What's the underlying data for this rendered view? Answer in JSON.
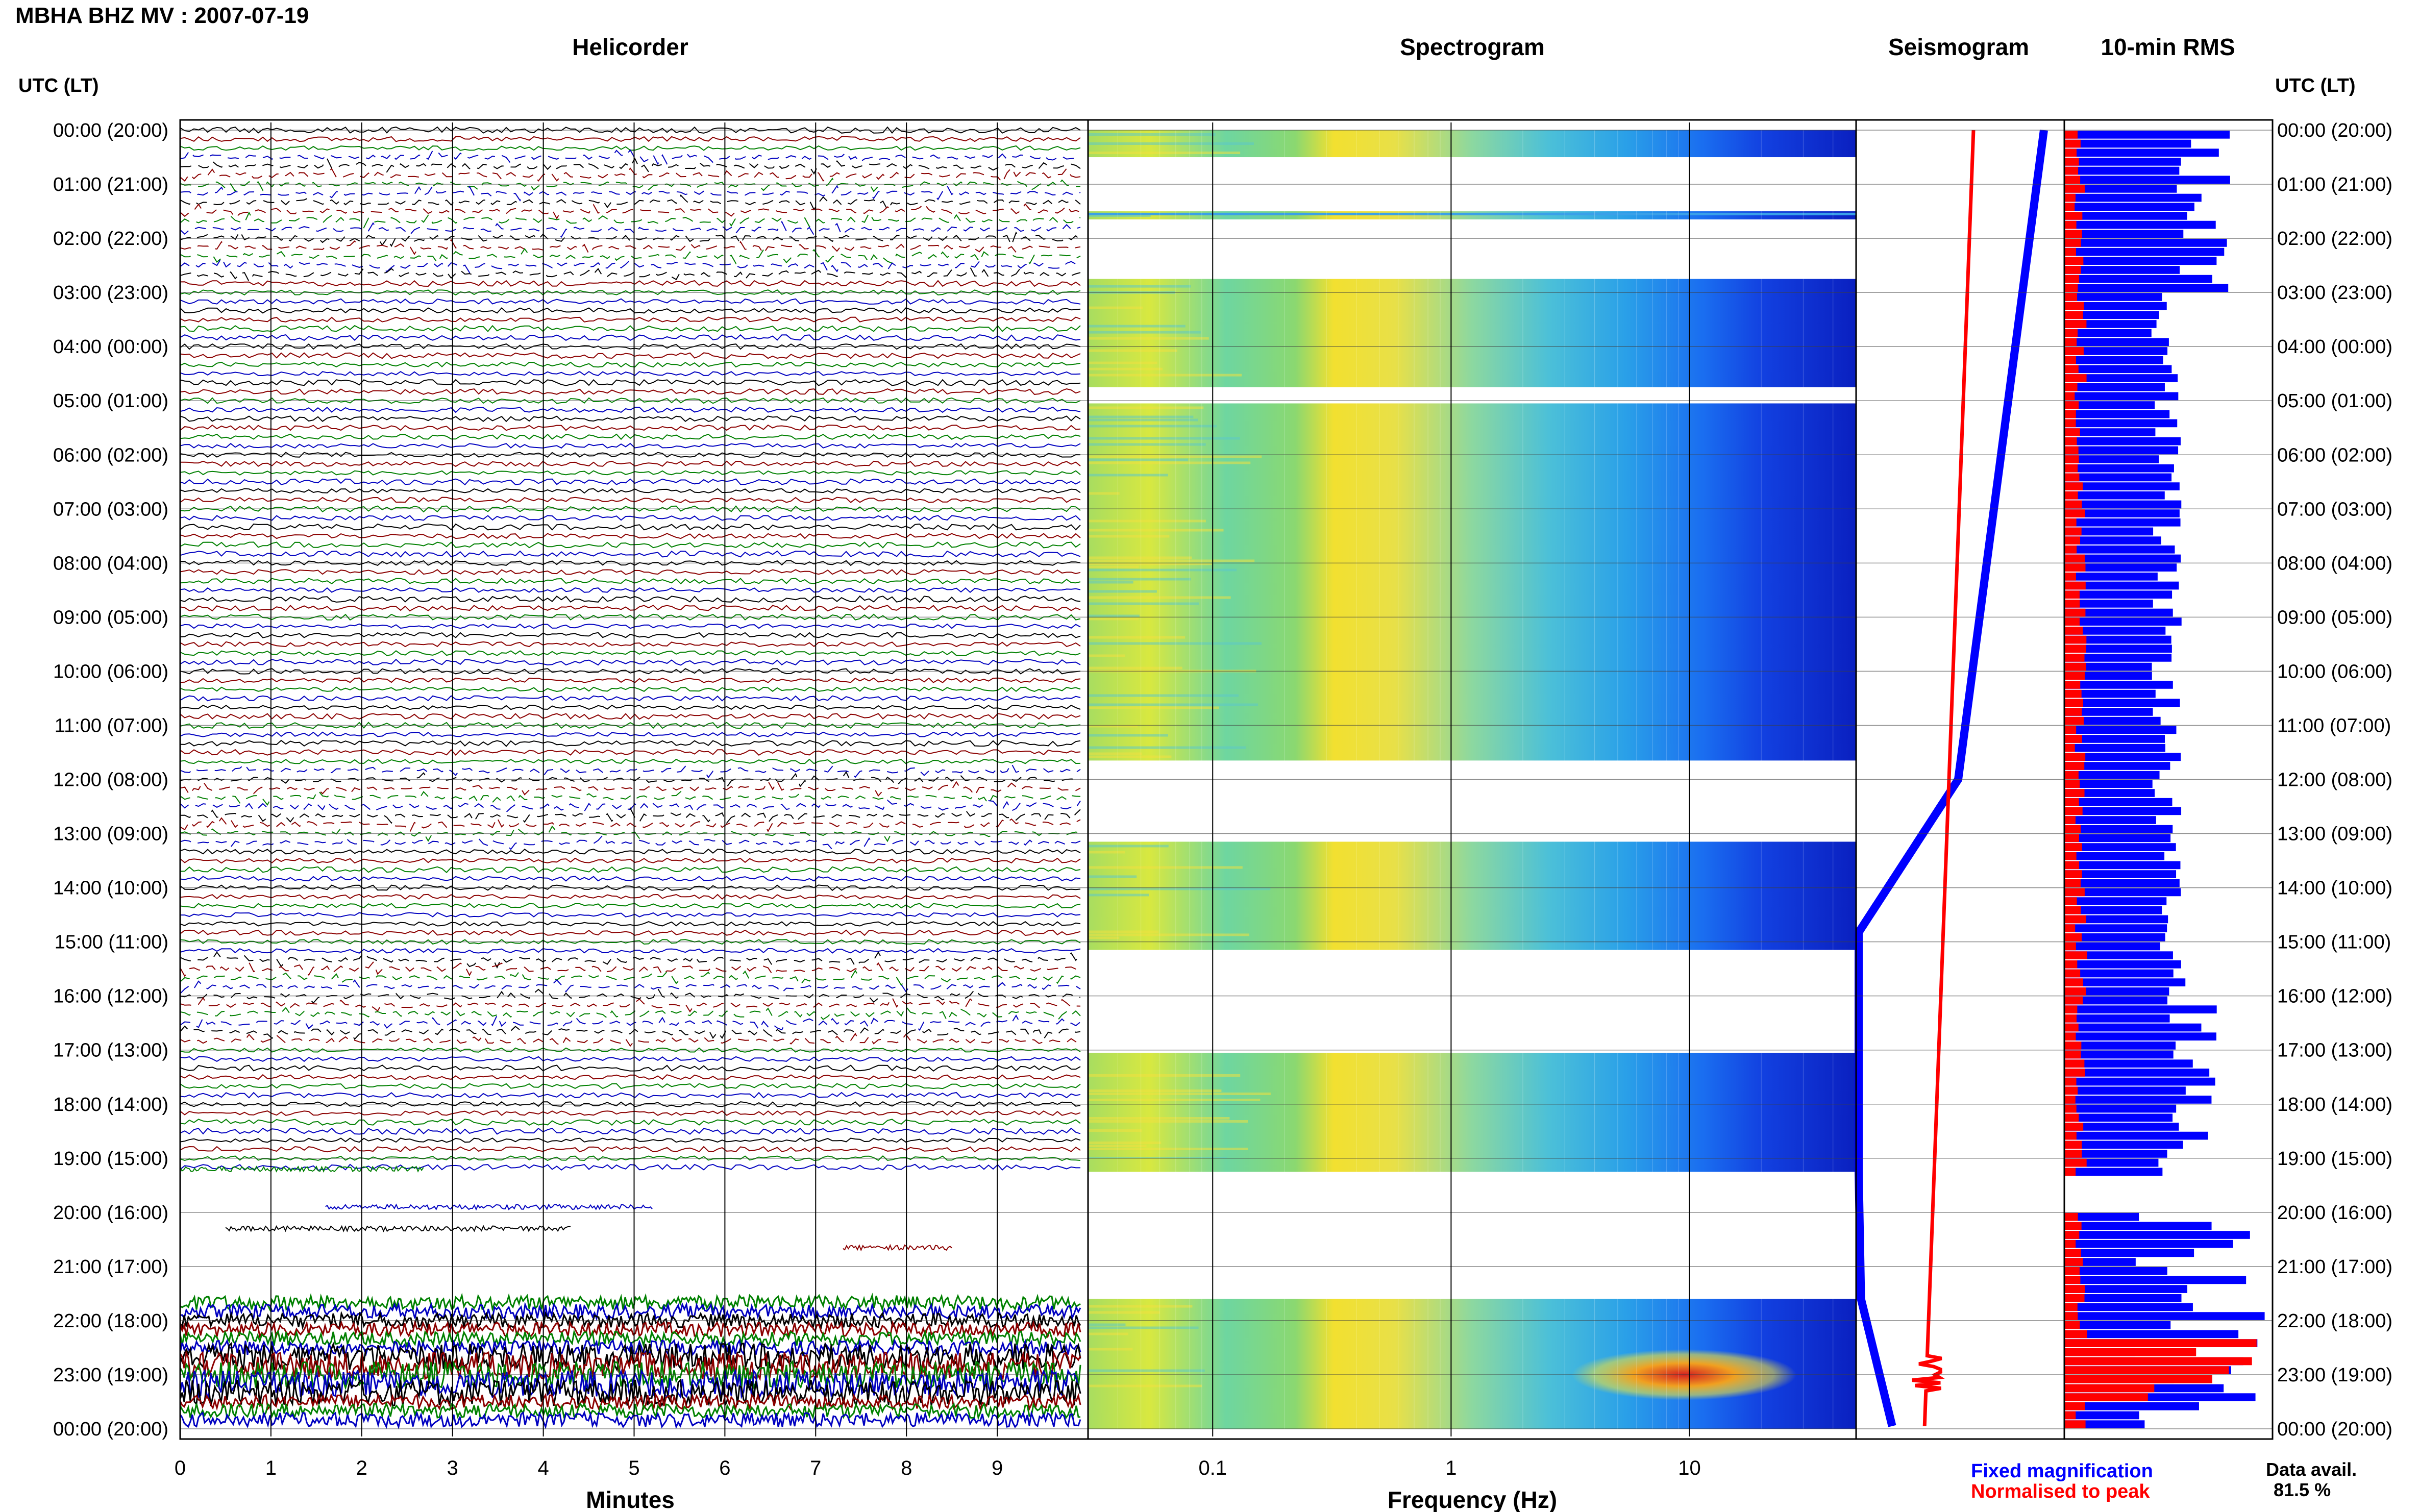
{
  "header": {
    "title": "MBHA BHZ MV : 2007-07-19"
  },
  "panels": {
    "helicorder": "Helicorder",
    "spectrogram": "Spectrogram",
    "seismogram": "Seismogram",
    "rms": "10-min RMS"
  },
  "axes": {
    "utc_left": "UTC (LT)",
    "utc_right": "UTC (LT)",
    "minutes_label": "Minutes",
    "frequency_label": "Frequency (Hz)"
  },
  "legend": {
    "fixed": "Fixed magnification",
    "normalised": "Normalised to peak",
    "fixed_color": "#0000ff",
    "normalised_color": "#ff0000"
  },
  "data_avail": {
    "label": "Data avail.",
    "value": "81.5 %"
  },
  "chart_data": [
    {
      "type": "line",
      "panel": "Helicorder",
      "xlabel": "Minutes",
      "x_ticks": [
        "0",
        "1",
        "2",
        "3",
        "4",
        "5",
        "6",
        "7",
        "8",
        "9"
      ],
      "xlim": [
        0,
        10
      ],
      "ylabel": "UTC (LT)",
      "time_ticks": [
        "00:00 (20:00)",
        "01:00 (21:00)",
        "02:00 (22:00)",
        "03:00 (23:00)",
        "04:00 (00:00)",
        "05:00 (01:00)",
        "06:00 (02:00)",
        "07:00 (03:00)",
        "08:00 (04:00)",
        "09:00 (05:00)",
        "10:00 (06:00)",
        "11:00 (07:00)",
        "12:00 (08:00)",
        "13:00 (09:00)",
        "14:00 (10:00)",
        "15:00 (11:00)",
        "16:00 (12:00)",
        "17:00 (13:00)",
        "18:00 (14:00)",
        "19:00 (15:00)",
        "20:00 (16:00)",
        "21:00 (17:00)",
        "22:00 (18:00)",
        "23:00 (19:00)",
        "00:00 (20:00)"
      ],
      "trace_colors": [
        "#000000",
        "#8b0000",
        "#008000",
        "#0000c0"
      ],
      "grid": true
    },
    {
      "type": "heatmap",
      "panel": "Spectrogram",
      "xlabel": "Frequency (Hz)",
      "x_scale": "log",
      "x_ticks": [
        "0.1",
        "1",
        "10"
      ],
      "xlim": [
        0.03,
        50
      ],
      "gaps_hours": [
        [
          0.5,
          1.5
        ],
        [
          1.65,
          2.75
        ],
        [
          4.75,
          5.05
        ],
        [
          11.65,
          13.15
        ],
        [
          15.15,
          17.05
        ],
        [
          19.25,
          21.6
        ]
      ]
    },
    {
      "type": "line",
      "panel": "Seismogram",
      "series": [
        {
          "name": "Fixed magnification",
          "color": "#0000ff"
        },
        {
          "name": "Normalised to peak",
          "color": "#ff0000"
        }
      ]
    },
    {
      "type": "bar",
      "panel": "10-min RMS",
      "series": [
        {
          "name": "Fixed magnification",
          "color": "#0000ff"
        },
        {
          "name": "Normalised to peak",
          "color": "#ff0000"
        }
      ]
    }
  ]
}
